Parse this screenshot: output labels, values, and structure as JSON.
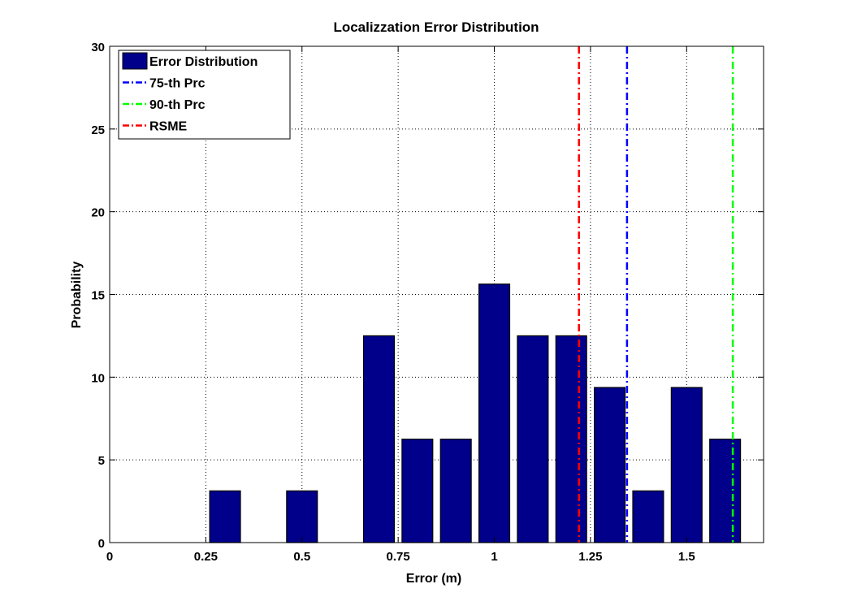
{
  "chart_data": {
    "type": "bar",
    "title": "Localizzation Error Distribution",
    "xlabel": "Error (m)",
    "ylabel": "Probability",
    "xlim": [
      0,
      1.7
    ],
    "ylim": [
      0,
      30
    ],
    "grid": true,
    "legend_position": "top-left",
    "x_ticks": [
      0,
      0.25,
      0.5,
      0.75,
      1,
      1.25,
      1.5
    ],
    "x_tick_labels": [
      "0",
      "0.25",
      "0.5",
      "0.75",
      "1",
      "1.25",
      "1.5"
    ],
    "y_ticks": [
      0,
      5,
      10,
      15,
      20,
      25,
      30
    ],
    "y_tick_labels": [
      "0",
      "5",
      "10",
      "15",
      "20",
      "25",
      "30"
    ],
    "bar_width": 0.08,
    "bar_color": "#00008B",
    "bars": [
      {
        "x": 0.3,
        "value": 3.125
      },
      {
        "x": 0.5,
        "value": 3.125
      },
      {
        "x": 0.7,
        "value": 12.5
      },
      {
        "x": 0.8,
        "value": 6.25
      },
      {
        "x": 0.9,
        "value": 6.25
      },
      {
        "x": 1.0,
        "value": 15.625
      },
      {
        "x": 1.1,
        "value": 12.5
      },
      {
        "x": 1.2,
        "value": 12.5
      },
      {
        "x": 1.3,
        "value": 9.375
      },
      {
        "x": 1.4,
        "value": 3.125
      },
      {
        "x": 1.5,
        "value": 9.375
      },
      {
        "x": 1.6,
        "value": 6.25
      }
    ],
    "reference_lines": [
      {
        "name": "75-th Prc",
        "x": 1.345,
        "color": "#0000FF"
      },
      {
        "name": "90-th Prc",
        "x": 1.62,
        "color": "#00FF00"
      },
      {
        "name": "RSME",
        "x": 1.22,
        "color": "#FF0000"
      }
    ],
    "legend": [
      {
        "label": "Error Distribution",
        "kind": "patch",
        "color": "#00008B"
      },
      {
        "label": "75-th Prc",
        "kind": "dashdot",
        "color": "#0000FF"
      },
      {
        "label": "90-th Prc",
        "kind": "dashdot",
        "color": "#00FF00"
      },
      {
        "label": "RSME",
        "kind": "dashdot",
        "color": "#FF0000"
      }
    ]
  }
}
